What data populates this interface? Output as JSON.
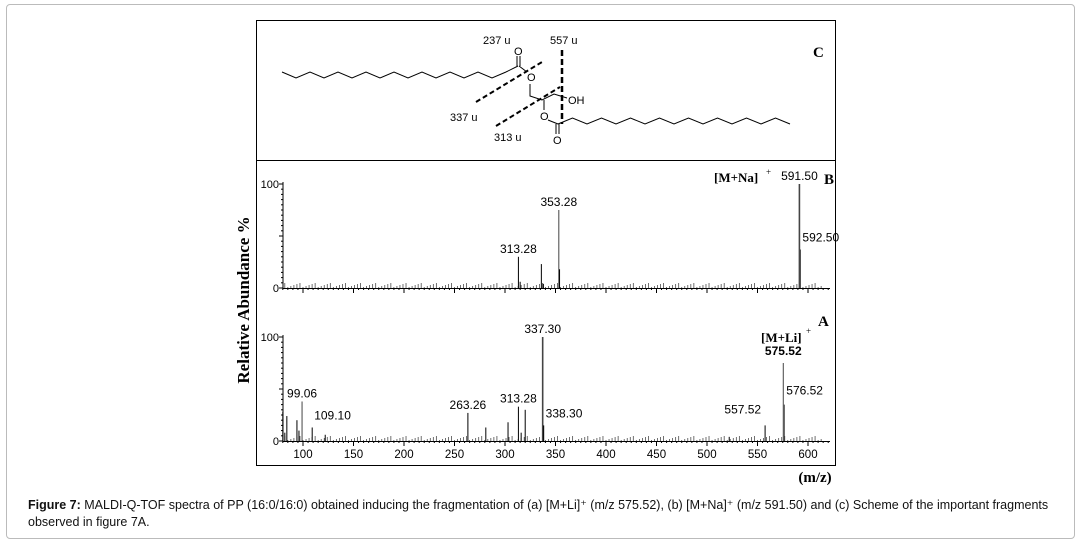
{
  "figure": {
    "caption_label": "Figure 7:",
    "caption_text": " MALDI-Q-TOF spectra of PP (16:0/16:0) obtained inducing the fragmentation of (a) [M+Li]⁺ (m/z 575.52), (b) [M+Na]⁺ (m/z 591.50) and (c) Scheme of the important fragments observed in figure 7A."
  },
  "scheme": {
    "panel_label": "C",
    "fragments": [
      "237 u",
      "557 u",
      "337 u",
      "313 u"
    ],
    "atoms": {
      "O": "O",
      "OH": "OH"
    }
  },
  "chart_data": [
    {
      "type": "bar",
      "panel": "B",
      "ylabel": "Relative Abundance %",
      "xlim": [
        80,
        620
      ],
      "ylim": [
        0,
        100
      ],
      "yticks": [
        "0",
        "100"
      ],
      "ion_label": "[M+Na]",
      "ion_charge": "+",
      "peaks": [
        {
          "mz": 313.28,
          "value": 30,
          "label": "313.28"
        },
        {
          "mz": 315,
          "value": 6
        },
        {
          "mz": 336,
          "value": 23
        },
        {
          "mz": 338,
          "value": 4
        },
        {
          "mz": 353.28,
          "value": 75,
          "label": "353.28"
        },
        {
          "mz": 354,
          "value": 18
        },
        {
          "mz": 591.5,
          "value": 100,
          "label": "591.50"
        },
        {
          "mz": 592.5,
          "value": 37,
          "label": "592.50"
        }
      ]
    },
    {
      "type": "bar",
      "panel": "A",
      "xlabel": "(m/z)",
      "xlim": [
        80,
        620
      ],
      "ylim": [
        0,
        100
      ],
      "xticks": [
        "100",
        "150",
        "200",
        "250",
        "300",
        "350",
        "400",
        "450",
        "500",
        "550",
        "600"
      ],
      "yticks": [
        "0",
        "100"
      ],
      "ion_label": "[M+Li]",
      "ion_charge": "+",
      "peaks": [
        {
          "mz": 80,
          "value": 28
        },
        {
          "mz": 82,
          "value": 8
        },
        {
          "mz": 84,
          "value": 24
        },
        {
          "mz": 94,
          "value": 20
        },
        {
          "mz": 96,
          "value": 10
        },
        {
          "mz": 99.06,
          "value": 38,
          "label": "99.06"
        },
        {
          "mz": 109.1,
          "value": 13,
          "label": "109.10"
        },
        {
          "mz": 122,
          "value": 6
        },
        {
          "mz": 263.26,
          "value": 27,
          "label": "263.26"
        },
        {
          "mz": 281,
          "value": 13
        },
        {
          "mz": 303,
          "value": 18
        },
        {
          "mz": 313.28,
          "value": 33,
          "label": "313.28"
        },
        {
          "mz": 316,
          "value": 8
        },
        {
          "mz": 320,
          "value": 30
        },
        {
          "mz": 337.3,
          "value": 100,
          "label": "337.30"
        },
        {
          "mz": 338.3,
          "value": 15,
          "label": "338.30"
        },
        {
          "mz": 522,
          "value": 4
        },
        {
          "mz": 557.52,
          "value": 15,
          "label": "557.52"
        },
        {
          "mz": 575.52,
          "value": 75,
          "label": "575.52"
        },
        {
          "mz": 576.52,
          "value": 35,
          "label": "576.52"
        }
      ]
    }
  ]
}
